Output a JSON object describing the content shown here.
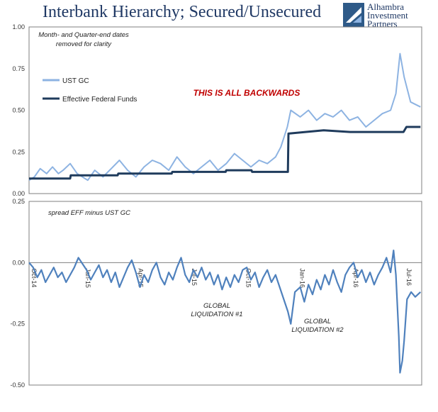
{
  "title": "Interbank Hierarchy; Secured/Unsecured",
  "logo": {
    "line1": "Alhambra",
    "line2": "Investment",
    "line3": "Partners"
  },
  "colors": {
    "ust_gc": "#8db3e2",
    "eff": "#1f3b5c",
    "spread": "#4f81bd",
    "callout": "#c00000"
  },
  "chart_data": [
    {
      "type": "line",
      "annotation_top": "Month- and Quarter-end dates",
      "annotation_bottom": "removed for clarity",
      "callout": "THIS IS ALL BACKWARDS",
      "ylim": [
        0,
        1
      ],
      "yticks": [
        "1.00",
        "0.75",
        "0.50",
        "0.25",
        "0.00"
      ],
      "xlim": [
        "2014-10-01",
        "2016-07-31"
      ],
      "series": [
        {
          "name": "UST GC",
          "points": [
            [
              "2014-10-01",
              0.08
            ],
            [
              "2014-10-10",
              0.1
            ],
            [
              "2014-10-20",
              0.15
            ],
            [
              "2014-10-31",
              0.12
            ],
            [
              "2014-11-10",
              0.16
            ],
            [
              "2014-11-20",
              0.12
            ],
            [
              "2014-11-28",
              0.14
            ],
            [
              "2014-12-10",
              0.18
            ],
            [
              "2014-12-22",
              0.12
            ],
            [
              "2015-01-09",
              0.08
            ],
            [
              "2015-01-21",
              0.14
            ],
            [
              "2015-02-04",
              0.1
            ],
            [
              "2015-02-18",
              0.15
            ],
            [
              "2015-03-04",
              0.2
            ],
            [
              "2015-03-18",
              0.14
            ],
            [
              "2015-04-01",
              0.1
            ],
            [
              "2015-04-15",
              0.16
            ],
            [
              "2015-04-29",
              0.2
            ],
            [
              "2015-05-13",
              0.18
            ],
            [
              "2015-05-27",
              0.14
            ],
            [
              "2015-06-10",
              0.22
            ],
            [
              "2015-06-24",
              0.16
            ],
            [
              "2015-07-08",
              0.12
            ],
            [
              "2015-07-22",
              0.16
            ],
            [
              "2015-08-05",
              0.2
            ],
            [
              "2015-08-19",
              0.14
            ],
            [
              "2015-09-02",
              0.18
            ],
            [
              "2015-09-16",
              0.24
            ],
            [
              "2015-09-30",
              0.2
            ],
            [
              "2015-10-14",
              0.16
            ],
            [
              "2015-10-28",
              0.2
            ],
            [
              "2015-11-11",
              0.18
            ],
            [
              "2015-11-25",
              0.22
            ],
            [
              "2015-12-04",
              0.28
            ],
            [
              "2015-12-15",
              0.4
            ],
            [
              "2015-12-21",
              0.5
            ],
            [
              "2016-01-06",
              0.46
            ],
            [
              "2016-01-20",
              0.5
            ],
            [
              "2016-02-03",
              0.44
            ],
            [
              "2016-02-17",
              0.48
            ],
            [
              "2016-03-02",
              0.46
            ],
            [
              "2016-03-16",
              0.5
            ],
            [
              "2016-03-30",
              0.44
            ],
            [
              "2016-04-13",
              0.46
            ],
            [
              "2016-04-27",
              0.4
            ],
            [
              "2016-05-11",
              0.44
            ],
            [
              "2016-05-25",
              0.48
            ],
            [
              "2016-06-08",
              0.5
            ],
            [
              "2016-06-17",
              0.6
            ],
            [
              "2016-06-24",
              0.84
            ],
            [
              "2016-07-01",
              0.7
            ],
            [
              "2016-07-12",
              0.55
            ],
            [
              "2016-07-29",
              0.52
            ]
          ]
        },
        {
          "name": "Effective Federal Funds",
          "points": [
            [
              "2014-10-01",
              0.09
            ],
            [
              "2014-12-10",
              0.09
            ],
            [
              "2014-12-11",
              0.11
            ],
            [
              "2015-03-01",
              0.11
            ],
            [
              "2015-03-02",
              0.12
            ],
            [
              "2015-06-01",
              0.12
            ],
            [
              "2015-06-02",
              0.13
            ],
            [
              "2015-09-01",
              0.13
            ],
            [
              "2015-09-02",
              0.14
            ],
            [
              "2015-10-15",
              0.14
            ],
            [
              "2015-10-16",
              0.13
            ],
            [
              "2015-12-16",
              0.13
            ],
            [
              "2015-12-17",
              0.36
            ],
            [
              "2016-01-15",
              0.37
            ],
            [
              "2016-02-15",
              0.38
            ],
            [
              "2016-03-31",
              0.37
            ],
            [
              "2016-04-15",
              0.37
            ],
            [
              "2016-06-30",
              0.37
            ],
            [
              "2016-07-05",
              0.4
            ],
            [
              "2016-07-29",
              0.4
            ]
          ]
        }
      ]
    },
    {
      "type": "line",
      "annotation": "spread EFF minus UST GC",
      "ylim": [
        -0.5,
        0.25
      ],
      "yticks": [
        "0.25",
        "0.00",
        "-0.25",
        "-0.50"
      ],
      "xlim": [
        "2014-10-01",
        "2016-07-31"
      ],
      "xticks": [
        [
          "2014-10-01",
          "Oct-14"
        ],
        [
          "2015-01-01",
          "Jan-15"
        ],
        [
          "2015-04-01",
          "Apr-15"
        ],
        [
          "2015-07-01",
          "Jul-15"
        ],
        [
          "2015-10-01",
          "Oct-15"
        ],
        [
          "2016-01-01",
          "Jan-16"
        ],
        [
          "2016-04-01",
          "Apr-16"
        ],
        [
          "2016-07-01",
          "Jul-16"
        ]
      ],
      "annotations": [
        {
          "line1": "GLOBAL",
          "line2": "LIQUIDATION #1"
        },
        {
          "line1": "GLOBAL",
          "line2": "LIQUIDATION #2"
        }
      ],
      "series": [
        {
          "name": "spread",
          "points": [
            [
              "2014-10-01",
              0.0
            ],
            [
              "2014-10-08",
              -0.02
            ],
            [
              "2014-10-15",
              -0.06
            ],
            [
              "2014-10-22",
              -0.03
            ],
            [
              "2014-10-29",
              -0.08
            ],
            [
              "2014-11-05",
              -0.05
            ],
            [
              "2014-11-12",
              -0.02
            ],
            [
              "2014-11-19",
              -0.06
            ],
            [
              "2014-11-26",
              -0.04
            ],
            [
              "2014-12-03",
              -0.08
            ],
            [
              "2014-12-10",
              -0.05
            ],
            [
              "2014-12-17",
              -0.02
            ],
            [
              "2014-12-24",
              0.02
            ],
            [
              "2015-01-07",
              -0.03
            ],
            [
              "2015-01-14",
              -0.07
            ],
            [
              "2015-01-21",
              -0.04
            ],
            [
              "2015-01-28",
              -0.01
            ],
            [
              "2015-02-04",
              -0.06
            ],
            [
              "2015-02-11",
              -0.03
            ],
            [
              "2015-02-18",
              -0.08
            ],
            [
              "2015-02-25",
              -0.04
            ],
            [
              "2015-03-04",
              -0.1
            ],
            [
              "2015-03-11",
              -0.06
            ],
            [
              "2015-03-18",
              -0.02
            ],
            [
              "2015-03-25",
              0.01
            ],
            [
              "2015-04-01",
              -0.04
            ],
            [
              "2015-04-08",
              -0.1
            ],
            [
              "2015-04-15",
              -0.05
            ],
            [
              "2015-04-22",
              -0.08
            ],
            [
              "2015-04-29",
              -0.03
            ],
            [
              "2015-05-06",
              0.0
            ],
            [
              "2015-05-13",
              -0.06
            ],
            [
              "2015-05-20",
              -0.09
            ],
            [
              "2015-05-27",
              -0.04
            ],
            [
              "2015-06-03",
              -0.07
            ],
            [
              "2015-06-10",
              -0.02
            ],
            [
              "2015-06-17",
              0.02
            ],
            [
              "2015-06-24",
              -0.05
            ],
            [
              "2015-07-01",
              -0.08
            ],
            [
              "2015-07-08",
              -0.03
            ],
            [
              "2015-07-15",
              -0.06
            ],
            [
              "2015-07-22",
              -0.02
            ],
            [
              "2015-07-29",
              -0.07
            ],
            [
              "2015-08-05",
              -0.04
            ],
            [
              "2015-08-12",
              -0.09
            ],
            [
              "2015-08-19",
              -0.05
            ],
            [
              "2015-08-26",
              -0.11
            ],
            [
              "2015-09-02",
              -0.06
            ],
            [
              "2015-09-09",
              -0.1
            ],
            [
              "2015-09-16",
              -0.05
            ],
            [
              "2015-09-23",
              -0.08
            ],
            [
              "2015-09-30",
              -0.03
            ],
            [
              "2015-10-07",
              -0.02
            ],
            [
              "2015-10-14",
              -0.07
            ],
            [
              "2015-10-21",
              -0.04
            ],
            [
              "2015-10-28",
              -0.1
            ],
            [
              "2015-11-04",
              -0.06
            ],
            [
              "2015-11-11",
              -0.03
            ],
            [
              "2015-11-18",
              -0.08
            ],
            [
              "2015-11-25",
              -0.05
            ],
            [
              "2015-12-02",
              -0.1
            ],
            [
              "2015-12-09",
              -0.15
            ],
            [
              "2015-12-16",
              -0.2
            ],
            [
              "2015-12-21",
              -0.25
            ],
            [
              "2015-12-28",
              -0.12
            ],
            [
              "2016-01-06",
              -0.1
            ],
            [
              "2016-01-13",
              -0.16
            ],
            [
              "2016-01-20",
              -0.09
            ],
            [
              "2016-01-27",
              -0.13
            ],
            [
              "2016-02-03",
              -0.07
            ],
            [
              "2016-02-10",
              -0.11
            ],
            [
              "2016-02-17",
              -0.05
            ],
            [
              "2016-02-24",
              -0.09
            ],
            [
              "2016-03-02",
              -0.03
            ],
            [
              "2016-03-09",
              -0.08
            ],
            [
              "2016-03-16",
              -0.12
            ],
            [
              "2016-03-23",
              -0.05
            ],
            [
              "2016-03-30",
              -0.02
            ],
            [
              "2016-04-06",
              0.0
            ],
            [
              "2016-04-13",
              -0.06
            ],
            [
              "2016-04-20",
              -0.03
            ],
            [
              "2016-04-27",
              -0.08
            ],
            [
              "2016-05-04",
              -0.04
            ],
            [
              "2016-05-11",
              -0.09
            ],
            [
              "2016-05-18",
              -0.05
            ],
            [
              "2016-05-25",
              -0.02
            ],
            [
              "2016-06-01",
              0.02
            ],
            [
              "2016-06-08",
              -0.04
            ],
            [
              "2016-06-13",
              0.05
            ],
            [
              "2016-06-17",
              -0.05
            ],
            [
              "2016-06-22",
              -0.3
            ],
            [
              "2016-06-24",
              -0.45
            ],
            [
              "2016-06-28",
              -0.4
            ],
            [
              "2016-07-01",
              -0.32
            ],
            [
              "2016-07-06",
              -0.15
            ],
            [
              "2016-07-13",
              -0.12
            ],
            [
              "2016-07-20",
              -0.14
            ],
            [
              "2016-07-29",
              -0.12
            ]
          ]
        }
      ]
    }
  ]
}
